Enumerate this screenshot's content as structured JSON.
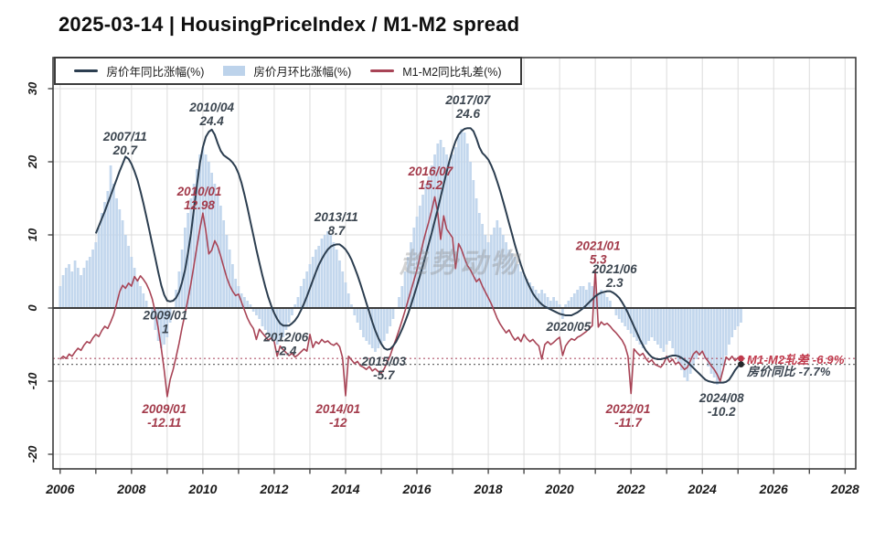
{
  "title": "2025-03-14 | HousingPriceIndex / M1-M2 spread",
  "watermark": "趋势动物",
  "legend": {
    "items": [
      {
        "label": "房价年同比涨幅(%)",
        "type": "line",
        "color": "#2c3e50"
      },
      {
        "label": "房价月环比涨幅(%)",
        "type": "bar",
        "color": "#bdd3eb"
      },
      {
        "label": "M1-M2同比轧差(%)",
        "type": "line",
        "color": "#a84456"
      }
    ]
  },
  "end_labels": [
    {
      "text": "M1-M2轧差 -6.9%",
      "series": "m1m2",
      "color": "#c13a4c"
    },
    {
      "text": "房价同比 -7.7%",
      "series": "housing",
      "color": "#39434f"
    }
  ],
  "colors": {
    "line_dark": "#2c3e50",
    "line_red": "#a84456",
    "bars": "#bdd3eb",
    "grid": "#dcdcdc",
    "axis": "#3c3c3c",
    "tick_text": "#1a1a1a",
    "annotation_dark": "#3c4650",
    "annotation_red": "#a33b4b",
    "ref_red": "#b0556a",
    "ref_dark": "#6a6a6a",
    "watermark": "rgba(140,140,140,0.38)"
  },
  "chart_data": {
    "type": "mixed bar+line",
    "title": "2025-03-14 | HousingPriceIndex / M1-M2 spread",
    "x_axis": {
      "label_ticks": [
        2006,
        2008,
        2010,
        2012,
        2014,
        2016,
        2018,
        2020,
        2022,
        2024,
        2026,
        2028
      ],
      "grid_year_start": 2006,
      "grid_year_end": 2028,
      "range": [
        2005.8,
        2028.3
      ]
    },
    "y_axis": {
      "ticks": [
        30,
        20,
        10,
        0,
        -10,
        -20
      ],
      "range": [
        -22,
        34.25
      ],
      "grid": true
    },
    "current_values": {
      "m1m2": -6.9,
      "housing_yoy": -7.7
    },
    "reference_lines": [
      {
        "y": -6.9,
        "style": "dotted",
        "series": "m1m2"
      },
      {
        "y": -7.7,
        "style": "dotted",
        "series": "housing"
      },
      {
        "y": 0,
        "style": "solid",
        "series": "zero"
      }
    ],
    "series": [
      {
        "name": "房价年同比涨幅(%)",
        "id": "housing_yoy",
        "type": "line",
        "start": 2007.0,
        "step_months": 1,
        "values": [
          10.2,
          11.2,
          12.2,
          13.2,
          14.3,
          15.4,
          16.5,
          17.6,
          18.7,
          19.7,
          20.7,
          20.4,
          19.7,
          18.7,
          17.5,
          16.0,
          14.3,
          12.5,
          10.6,
          8.7,
          6.8,
          4.9,
          3.1,
          1.8,
          1.0,
          0.9,
          1.0,
          1.4,
          2.2,
          3.5,
          5.2,
          7.5,
          10.2,
          13.5,
          16.8,
          19.8,
          22.0,
          23.4,
          24.1,
          24.4,
          23.7,
          22.5,
          21.5,
          20.9,
          20.6,
          20.3,
          19.9,
          19.3,
          18.4,
          17.1,
          15.5,
          13.7,
          11.8,
          9.9,
          8.0,
          6.2,
          4.5,
          2.9,
          1.5,
          0.3,
          -0.7,
          -1.5,
          -2.1,
          -2.4,
          -2.4,
          -2.4,
          -2.1,
          -1.7,
          -1.1,
          -0.3,
          0.6,
          1.6,
          2.7,
          3.8,
          4.9,
          5.9,
          6.7,
          7.4,
          8.0,
          8.4,
          8.6,
          8.7,
          8.7,
          8.4,
          8.0,
          7.4,
          6.6,
          5.6,
          4.5,
          3.3,
          2.0,
          0.7,
          -0.6,
          -1.9,
          -3.1,
          -4.1,
          -4.9,
          -5.5,
          -5.7,
          -5.6,
          -5.2,
          -4.6,
          -3.8,
          -2.9,
          -1.9,
          -0.8,
          0.4,
          1.7,
          3.0,
          4.4,
          5.8,
          7.3,
          8.8,
          10.3,
          11.9,
          13.5,
          15.2,
          16.9,
          18.6,
          20.2,
          21.6,
          22.8,
          23.7,
          24.2,
          24.5,
          24.6,
          24.6,
          24.2,
          23.2,
          22.0,
          21.2,
          20.8,
          20.3,
          19.5,
          18.5,
          17.3,
          16.0,
          14.6,
          13.1,
          11.6,
          10.1,
          8.6,
          7.2,
          5.9,
          4.7,
          3.7,
          2.8,
          2.0,
          1.4,
          0.9,
          0.5,
          0.2,
          0.0,
          -0.2,
          -0.4,
          -0.6,
          -0.8,
          -0.9,
          -1.0,
          -1.0,
          -1.0,
          -0.8,
          -0.6,
          -0.3,
          0.0,
          0.4,
          0.8,
          1.2,
          1.6,
          1.9,
          2.1,
          2.2,
          2.3,
          2.3,
          2.1,
          1.8,
          1.4,
          0.8,
          0.1,
          -0.7,
          -1.6,
          -2.5,
          -3.4,
          -4.3,
          -5.1,
          -5.8,
          -6.3,
          -6.7,
          -6.9,
          -7.0,
          -7.0,
          -6.9,
          -6.8,
          -6.6,
          -6.5,
          -6.5,
          -6.6,
          -6.8,
          -7.1,
          -7.4,
          -7.8,
          -8.2,
          -8.6,
          -9.0,
          -9.4,
          -9.8,
          -10.0,
          -10.1,
          -10.2,
          -10.2,
          -10.2,
          -10.2,
          -10.1,
          -9.8,
          -9.2,
          -8.5,
          -8.0,
          -7.7
        ]
      },
      {
        "name": "M1-M2同比轧差(%)",
        "id": "m1m2",
        "type": "line",
        "start": 2006.0,
        "step_months": 1,
        "values": [
          -7.0,
          -6.6,
          -6.9,
          -6.3,
          -6.6,
          -6.0,
          -5.5,
          -5.8,
          -5.1,
          -4.6,
          -4.8,
          -4.1,
          -3.6,
          -3.9,
          -3.1,
          -2.5,
          -2.8,
          -1.9,
          -0.9,
          0.6,
          2.2,
          3.1,
          2.7,
          3.4,
          3.0,
          4.3,
          3.7,
          4.4,
          3.9,
          3.3,
          2.4,
          1.2,
          -0.6,
          -2.8,
          -5.5,
          -8.5,
          -12.11,
          -9.8,
          -8.4,
          -6.7,
          -4.8,
          -2.7,
          -0.8,
          1.2,
          3.4,
          5.8,
          8.4,
          10.8,
          12.98,
          10.6,
          7.4,
          7.9,
          9.2,
          8.4,
          7.1,
          5.6,
          4.2,
          3.1,
          2.3,
          1.7,
          1.9,
          0.8,
          -0.3,
          -1.4,
          -2.2,
          -2.8,
          -4.3,
          -2.9,
          -3.4,
          -3.9,
          -4.4,
          -4.1,
          -4.6,
          -6.6,
          -5.2,
          -5.7,
          -6.1,
          -6.5,
          -6.2,
          -6.7,
          -6.4,
          -6.0,
          -5.6,
          -5.9,
          -3.6,
          -5.4,
          -4.6,
          -4.9,
          -4.3,
          -4.7,
          -4.5,
          -4.9,
          -5.1,
          -4.8,
          -5.3,
          -6.8,
          -12.0,
          -6.6,
          -7.1,
          -7.6,
          -7.3,
          -7.9,
          -8.1,
          -8.4,
          -8.0,
          -8.6,
          -8.3,
          -8.7,
          -8.9,
          -8.3,
          -7.4,
          -6.5,
          -5.3,
          -4.2,
          -3.0,
          -1.7,
          -0.4,
          1.0,
          2.4,
          3.8,
          5.2,
          7.0,
          8.8,
          10.4,
          11.8,
          13.4,
          15.2,
          13.0,
          9.4,
          12.6,
          10.8,
          10.2,
          9.6,
          5.4,
          8.8,
          8.0,
          6.8,
          5.8,
          5.2,
          4.4,
          3.6,
          4.0,
          3.0,
          2.2,
          1.4,
          0.6,
          -0.4,
          -1.4,
          -2.2,
          -2.8,
          -3.4,
          -3.0,
          -3.8,
          -4.4,
          -4.0,
          -4.6,
          -3.6,
          -4.2,
          -4.6,
          -4.3,
          -4.8,
          -5.2,
          -7.0,
          -5.0,
          -4.6,
          -5.0,
          -4.7,
          -4.3,
          -4.0,
          -6.5,
          -5.2,
          -4.6,
          -4.2,
          -4.4,
          -4.0,
          -3.8,
          -3.5,
          -3.2,
          -2.8,
          -2.4,
          5.3,
          -2.6,
          -1.9,
          -2.3,
          -2.1,
          -2.5,
          -3.0,
          -3.4,
          -3.9,
          -4.4,
          -5.2,
          -6.6,
          -11.7,
          -5.6,
          -6.1,
          -6.5,
          -6.2,
          -6.9,
          -7.4,
          -7.1,
          -7.7,
          -7.9,
          -8.1,
          -7.6,
          -6.6,
          -7.4,
          -7.0,
          -7.7,
          -7.4,
          -7.9,
          -8.4,
          -8.1,
          -7.2,
          -6.3,
          -5.9,
          -6.4,
          -5.9,
          -6.8,
          -7.3,
          -7.9,
          -8.4,
          -9.1,
          -10.0,
          -8.4,
          -6.7,
          -7.1,
          -6.6,
          -7.2,
          -6.8,
          -6.9
        ]
      },
      {
        "name": "房价月环比涨幅(%)",
        "id": "housing_mom",
        "type": "bar",
        "start": 2006.0,
        "step_months": 1,
        "values": [
          3,
          4.5,
          5.5,
          6,
          5,
          6.5,
          5.5,
          4.5,
          5.5,
          6.5,
          7,
          8,
          9,
          11,
          13,
          14.5,
          16,
          19.5,
          17,
          15,
          13.5,
          12,
          10,
          8.5,
          7,
          5.5,
          4,
          3,
          2,
          1,
          0,
          -1.5,
          -3,
          -4.5,
          -5.5,
          -5,
          -4,
          -2,
          0,
          2.5,
          5,
          8,
          11,
          13,
          15,
          17,
          19,
          21,
          22,
          21,
          20,
          18.5,
          17,
          15.5,
          14,
          12,
          10,
          8,
          6,
          4,
          3,
          2,
          1.5,
          1,
          0.5,
          -0.5,
          -1,
          -1.5,
          -2.5,
          -3,
          -3.5,
          -4,
          -4.5,
          -5,
          -4.5,
          -4,
          -3,
          -2,
          -1,
          0.5,
          1.5,
          3,
          4,
          5,
          6,
          7,
          8,
          8.5,
          9.5,
          10,
          10.5,
          10,
          9,
          8,
          6.5,
          5,
          3.5,
          2,
          0.5,
          -1,
          -2,
          -3,
          -4,
          -4.5,
          -5,
          -5.5,
          -6,
          -5.5,
          -5,
          -4.5,
          -3.5,
          -2.5,
          -1.5,
          0,
          1.5,
          3,
          5,
          7,
          9,
          11,
          12.5,
          14,
          15.5,
          17,
          18,
          19.5,
          21,
          22.5,
          23,
          22,
          21,
          20,
          21,
          22,
          23.5,
          24.5,
          24,
          22.5,
          20,
          17.5,
          15,
          13,
          11.5,
          10,
          9,
          10,
          11,
          12,
          11,
          10,
          9,
          8,
          7.5,
          7,
          6,
          5,
          4.5,
          4,
          3.5,
          3,
          2.5,
          2,
          2.5,
          2,
          1.5,
          1,
          1.5,
          1,
          0.5,
          -1.5,
          0.5,
          1,
          1.5,
          2,
          2.5,
          3,
          3,
          2.5,
          3.5,
          3,
          2.5,
          2,
          2.5,
          2,
          1.5,
          1,
          0,
          -1,
          -1.5,
          -2,
          -2.5,
          -3,
          -3.5,
          -4,
          -4.5,
          -5,
          -5.5,
          -5,
          -4.5,
          -4,
          -4.5,
          -5,
          -5.5,
          -6,
          -5,
          -4.5,
          -5.5,
          -6.5,
          -7.5,
          -8.5,
          -9.5,
          -10,
          -9,
          -8,
          -7,
          -6.5,
          -6,
          -7,
          -8,
          -9,
          -9.5,
          -10.5,
          -9.5,
          -8,
          -6.5,
          -5,
          -4,
          -3,
          -2.5,
          -2
        ]
      }
    ],
    "annotations": [
      {
        "lines": [
          "2007/11",
          "20.7"
        ],
        "x": 2007.82,
        "y": 22.6,
        "series": "housing"
      },
      {
        "lines": [
          "2010/04",
          "24.4"
        ],
        "x": 2010.25,
        "y": 26.6,
        "series": "housing"
      },
      {
        "lines": [
          "2010/01",
          "12.98"
        ],
        "x": 2009.9,
        "y": 15.1,
        "series": "m1m2"
      },
      {
        "lines": [
          "2009/01",
          "1"
        ],
        "x": 2008.95,
        "y": -1.8,
        "series": "housing"
      },
      {
        "lines": [
          "2009/01",
          "-12.11"
        ],
        "x": 2008.92,
        "y": -14.6,
        "series": "m1m2"
      },
      {
        "lines": [
          "2012/06",
          "-2.4"
        ],
        "x": 2012.33,
        "y": -4.8,
        "series": "housing"
      },
      {
        "lines": [
          "2013/11",
          "8.7"
        ],
        "x": 2013.74,
        "y": 11.6,
        "series": "housing"
      },
      {
        "lines": [
          "2014/01",
          "-12"
        ],
        "x": 2013.79,
        "y": -14.6,
        "series": "m1m2"
      },
      {
        "lines": [
          "2015/03",
          "-5.7"
        ],
        "x": 2015.07,
        "y": -8.1,
        "series": "housing"
      },
      {
        "lines": [
          "2016/07",
          "15.2"
        ],
        "x": 2016.38,
        "y": 17.9,
        "series": "m1m2"
      },
      {
        "lines": [
          "2017/07",
          "24.6"
        ],
        "x": 2017.43,
        "y": 27.6,
        "series": "housing"
      },
      {
        "lines": [
          "2020/05"
        ],
        "x": 2020.25,
        "y": -2.6,
        "series": "housing"
      },
      {
        "lines": [
          "2021/01",
          "5.3"
        ],
        "x": 2021.08,
        "y": 7.7,
        "series": "m1m2"
      },
      {
        "lines": [
          "2021/06",
          "2.3"
        ],
        "x": 2021.54,
        "y": 4.5,
        "series": "housing"
      },
      {
        "lines": [
          "2022/01",
          "-11.7"
        ],
        "x": 2021.92,
        "y": -14.6,
        "series": "m1m2"
      },
      {
        "lines": [
          "2024/08",
          "-10.2"
        ],
        "x": 2024.54,
        "y": -13.1,
        "series": "housing"
      }
    ]
  }
}
